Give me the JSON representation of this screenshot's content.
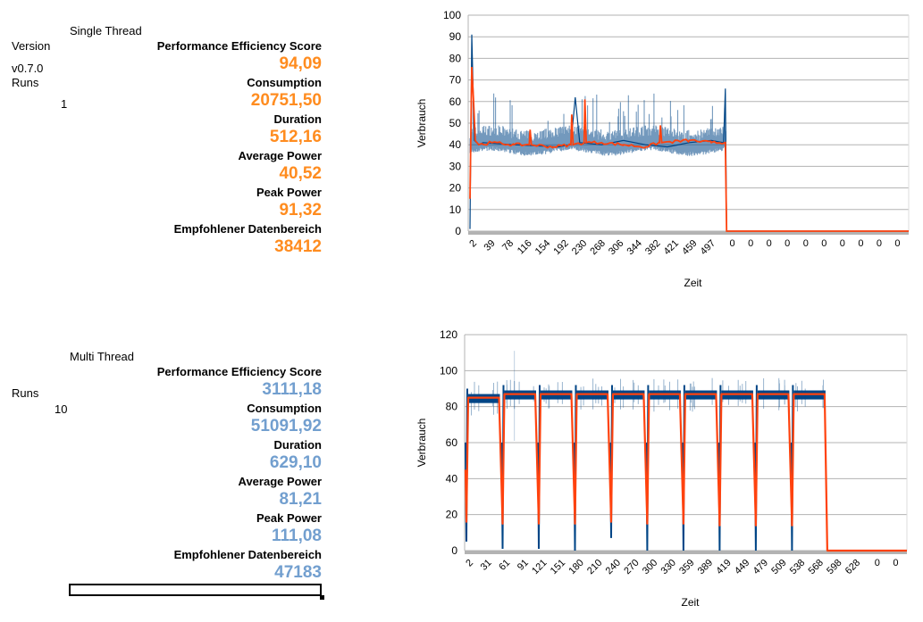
{
  "single": {
    "title": "Single Thread",
    "title_spell_word": "Thread",
    "version_label": "Version",
    "version_value": "v0.7.0",
    "runs_label": "Runs",
    "runs_value": "1",
    "metrics": [
      {
        "label": "Performance Efficiency Score",
        "value": "94,09"
      },
      {
        "label": "Consumption",
        "value": "20751,50"
      },
      {
        "label": "Duration",
        "value": "512,16"
      },
      {
        "label": "Average Power",
        "value": "40,52"
      },
      {
        "label": "Peak Power",
        "value": "91,32"
      },
      {
        "label": "Empfohlener Datenbereich",
        "value": "38412"
      }
    ],
    "value_color": "#ff8c1f"
  },
  "multi": {
    "title": "Multi Thread",
    "runs_label": "Runs",
    "runs_value": "10",
    "metrics": [
      {
        "label": "Performance Efficiency Score",
        "value": "3111,18"
      },
      {
        "label": "Consumption",
        "value": "51091,92"
      },
      {
        "label": "Duration",
        "value": "629,10"
      },
      {
        "label": "Average Power",
        "value": "81,21"
      },
      {
        "label": "Peak Power",
        "value": "111,08"
      },
      {
        "label": "Empfohlener Datenbereich",
        "value": "47183"
      }
    ],
    "value_color": "#729fcf"
  },
  "chart_data": [
    {
      "type": "line",
      "title": "",
      "xlabel": "Zeit",
      "ylabel": "Verbrauch",
      "ylim": [
        0,
        100
      ],
      "yticks": [
        0,
        10,
        20,
        30,
        40,
        50,
        60,
        70,
        80,
        90,
        100
      ],
      "grid": true,
      "legend": "none",
      "categories": [
        "2",
        "39",
        "78",
        "116",
        "154",
        "192",
        "230",
        "268",
        "306",
        "344",
        "382",
        "421",
        "459",
        "497",
        "0",
        "0",
        "0",
        "0",
        "0",
        "0",
        "0",
        "0",
        "0",
        "0"
      ],
      "active_fraction": 0.585,
      "series": [
        {
          "name": "raw",
          "color": "#004586",
          "x_fraction": [
            0,
            0.004,
            0.01,
            0.02,
            0.03,
            0.1,
            0.2,
            0.23,
            0.24,
            0.25,
            0.3,
            0.35,
            0.4,
            0.45,
            0.5,
            0.55,
            0.578,
            0.582,
            0.585,
            1.0
          ],
          "values": [
            1,
            91,
            42,
            40,
            41,
            40,
            39,
            40,
            62,
            41,
            40,
            42,
            40,
            39,
            41,
            42,
            41,
            66,
            0,
            0
          ]
        },
        {
          "name": "smoothed",
          "color": "#ff420e",
          "x_fraction": [
            0,
            0.004,
            0.008,
            0.012,
            0.02,
            0.05,
            0.1,
            0.135,
            0.137,
            0.14,
            0.19,
            0.23,
            0.232,
            0.235,
            0.26,
            0.262,
            0.265,
            0.3,
            0.35,
            0.4,
            0.432,
            0.434,
            0.437,
            0.5,
            0.55,
            0.582,
            0.585,
            1.0
          ],
          "values": [
            15,
            76,
            61,
            42,
            40,
            41,
            40,
            40,
            47,
            40,
            39,
            40,
            54,
            40,
            41,
            61,
            41,
            41,
            40,
            39,
            41,
            49,
            41,
            42,
            41,
            41,
            0,
            0
          ]
        }
      ]
    },
    {
      "type": "line",
      "title": "",
      "xlabel": "Zeit",
      "ylabel": "Verbrauch",
      "ylim": [
        0,
        120
      ],
      "yticks": [
        0,
        20,
        40,
        60,
        80,
        100,
        120
      ],
      "grid": true,
      "legend": "none",
      "categories": [
        "2",
        "31",
        "61",
        "91",
        "121",
        "151",
        "180",
        "210",
        "240",
        "270",
        "300",
        "330",
        "359",
        "389",
        "419",
        "449",
        "479",
        "509",
        "538",
        "568",
        "598",
        "628",
        "0",
        "0"
      ],
      "runs": 10,
      "run_plateau_raw": [
        84,
        86,
        86,
        86,
        86,
        86,
        86,
        86,
        86,
        86
      ],
      "run_plateau_smoothed": [
        85,
        87,
        87,
        87,
        87,
        87,
        87,
        87,
        87,
        87
      ],
      "run_dip_raw": [
        5,
        1,
        1,
        0,
        7,
        0,
        0,
        0,
        0,
        0
      ],
      "run_dip_smoothed": [
        16,
        15,
        15,
        15,
        16,
        15,
        15,
        14,
        14,
        14
      ],
      "peak_outlier": 111,
      "series": [
        {
          "name": "raw",
          "color": "#004586"
        },
        {
          "name": "smoothed",
          "color": "#ff420e"
        }
      ]
    }
  ]
}
